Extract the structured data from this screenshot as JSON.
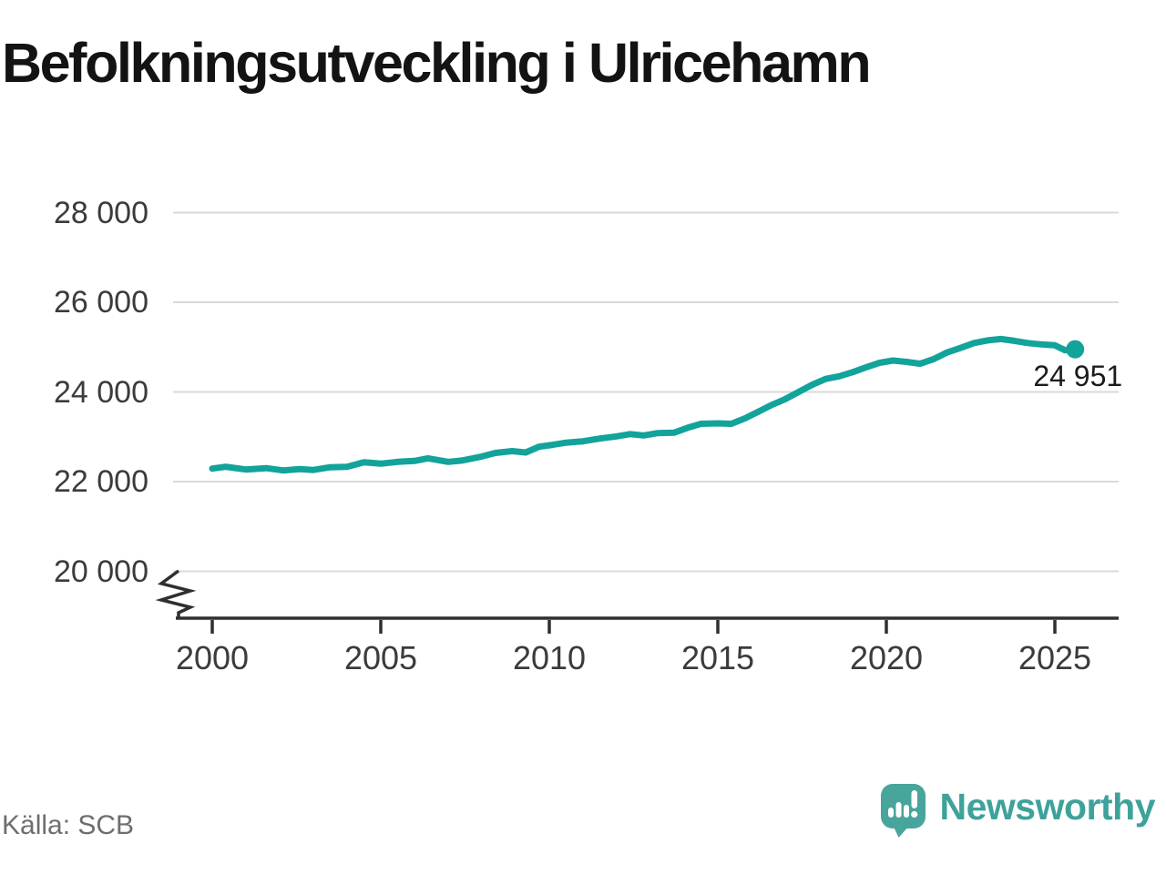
{
  "title": "Befolkningsutveckling i Ulricehamn",
  "source": "Källa: SCB",
  "annotation": {
    "label": "24 951"
  },
  "logo": {
    "text": "Newsworthy"
  },
  "colors": {
    "line": "#12a39b",
    "logo_teal": "#3ea29a",
    "logo_icon": "#47a59c",
    "grid": "#d9d9d9",
    "axis": "#2f2f2f",
    "tick_text": "#3b3b3b",
    "source_text": "#6e6e6e"
  },
  "chart_data": {
    "type": "line",
    "title": "Befolkningsutveckling i Ulricehamn",
    "xlabel": "",
    "ylabel": "",
    "grid": "horizontal",
    "legend": "none",
    "y_axis_break": true,
    "ylim": [
      19500,
      28600
    ],
    "x_range": [
      1999.2,
      2026.9
    ],
    "yticks": [
      {
        "value": 28000,
        "label": "28 000"
      },
      {
        "value": 26000,
        "label": "26 000"
      },
      {
        "value": 24000,
        "label": "24 000"
      },
      {
        "value": 22000,
        "label": "22 000"
      },
      {
        "value": 20000,
        "label": "20 000"
      }
    ],
    "xticks": [
      {
        "value": 2000,
        "label": "2000"
      },
      {
        "value": 2005,
        "label": "2005"
      },
      {
        "value": 2010,
        "label": "2010"
      },
      {
        "value": 2015,
        "label": "2015"
      },
      {
        "value": 2020,
        "label": "2020"
      },
      {
        "value": 2025,
        "label": "2025"
      }
    ],
    "series": [
      {
        "name": "Befolkning i Ulricehamn",
        "color": "#12a39b",
        "end_value": 24951,
        "end_label": "24 951",
        "points": [
          [
            2000.0,
            22290
          ],
          [
            2000.4,
            22330
          ],
          [
            2001.0,
            22270
          ],
          [
            2001.6,
            22300
          ],
          [
            2002.1,
            22250
          ],
          [
            2002.6,
            22280
          ],
          [
            2003.0,
            22260
          ],
          [
            2003.5,
            22320
          ],
          [
            2004.0,
            22330
          ],
          [
            2004.5,
            22430
          ],
          [
            2005.0,
            22400
          ],
          [
            2005.5,
            22440
          ],
          [
            2006.0,
            22460
          ],
          [
            2006.4,
            22520
          ],
          [
            2007.0,
            22440
          ],
          [
            2007.4,
            22470
          ],
          [
            2008.0,
            22560
          ],
          [
            2008.4,
            22640
          ],
          [
            2008.9,
            22680
          ],
          [
            2009.3,
            22650
          ],
          [
            2009.7,
            22780
          ],
          [
            2010.1,
            22820
          ],
          [
            2010.5,
            22870
          ],
          [
            2011.0,
            22900
          ],
          [
            2011.5,
            22960
          ],
          [
            2012.0,
            23010
          ],
          [
            2012.4,
            23060
          ],
          [
            2012.8,
            23030
          ],
          [
            2013.2,
            23080
          ],
          [
            2013.7,
            23090
          ],
          [
            2014.1,
            23200
          ],
          [
            2014.5,
            23290
          ],
          [
            2015.0,
            23300
          ],
          [
            2015.4,
            23290
          ],
          [
            2015.8,
            23410
          ],
          [
            2016.2,
            23560
          ],
          [
            2016.6,
            23710
          ],
          [
            2017.0,
            23840
          ],
          [
            2017.4,
            24000
          ],
          [
            2017.8,
            24160
          ],
          [
            2018.2,
            24290
          ],
          [
            2018.6,
            24350
          ],
          [
            2019.0,
            24440
          ],
          [
            2019.4,
            24550
          ],
          [
            2019.8,
            24650
          ],
          [
            2020.2,
            24700
          ],
          [
            2020.6,
            24670
          ],
          [
            2021.0,
            24630
          ],
          [
            2021.4,
            24730
          ],
          [
            2021.8,
            24880
          ],
          [
            2022.2,
            24980
          ],
          [
            2022.6,
            25090
          ],
          [
            2023.0,
            25150
          ],
          [
            2023.4,
            25180
          ],
          [
            2023.8,
            25140
          ],
          [
            2024.2,
            25090
          ],
          [
            2024.6,
            25060
          ],
          [
            2025.0,
            25040
          ],
          [
            2025.3,
            24930
          ],
          [
            2025.6,
            24951
          ]
        ]
      }
    ],
    "source": "Källa: SCB"
  }
}
